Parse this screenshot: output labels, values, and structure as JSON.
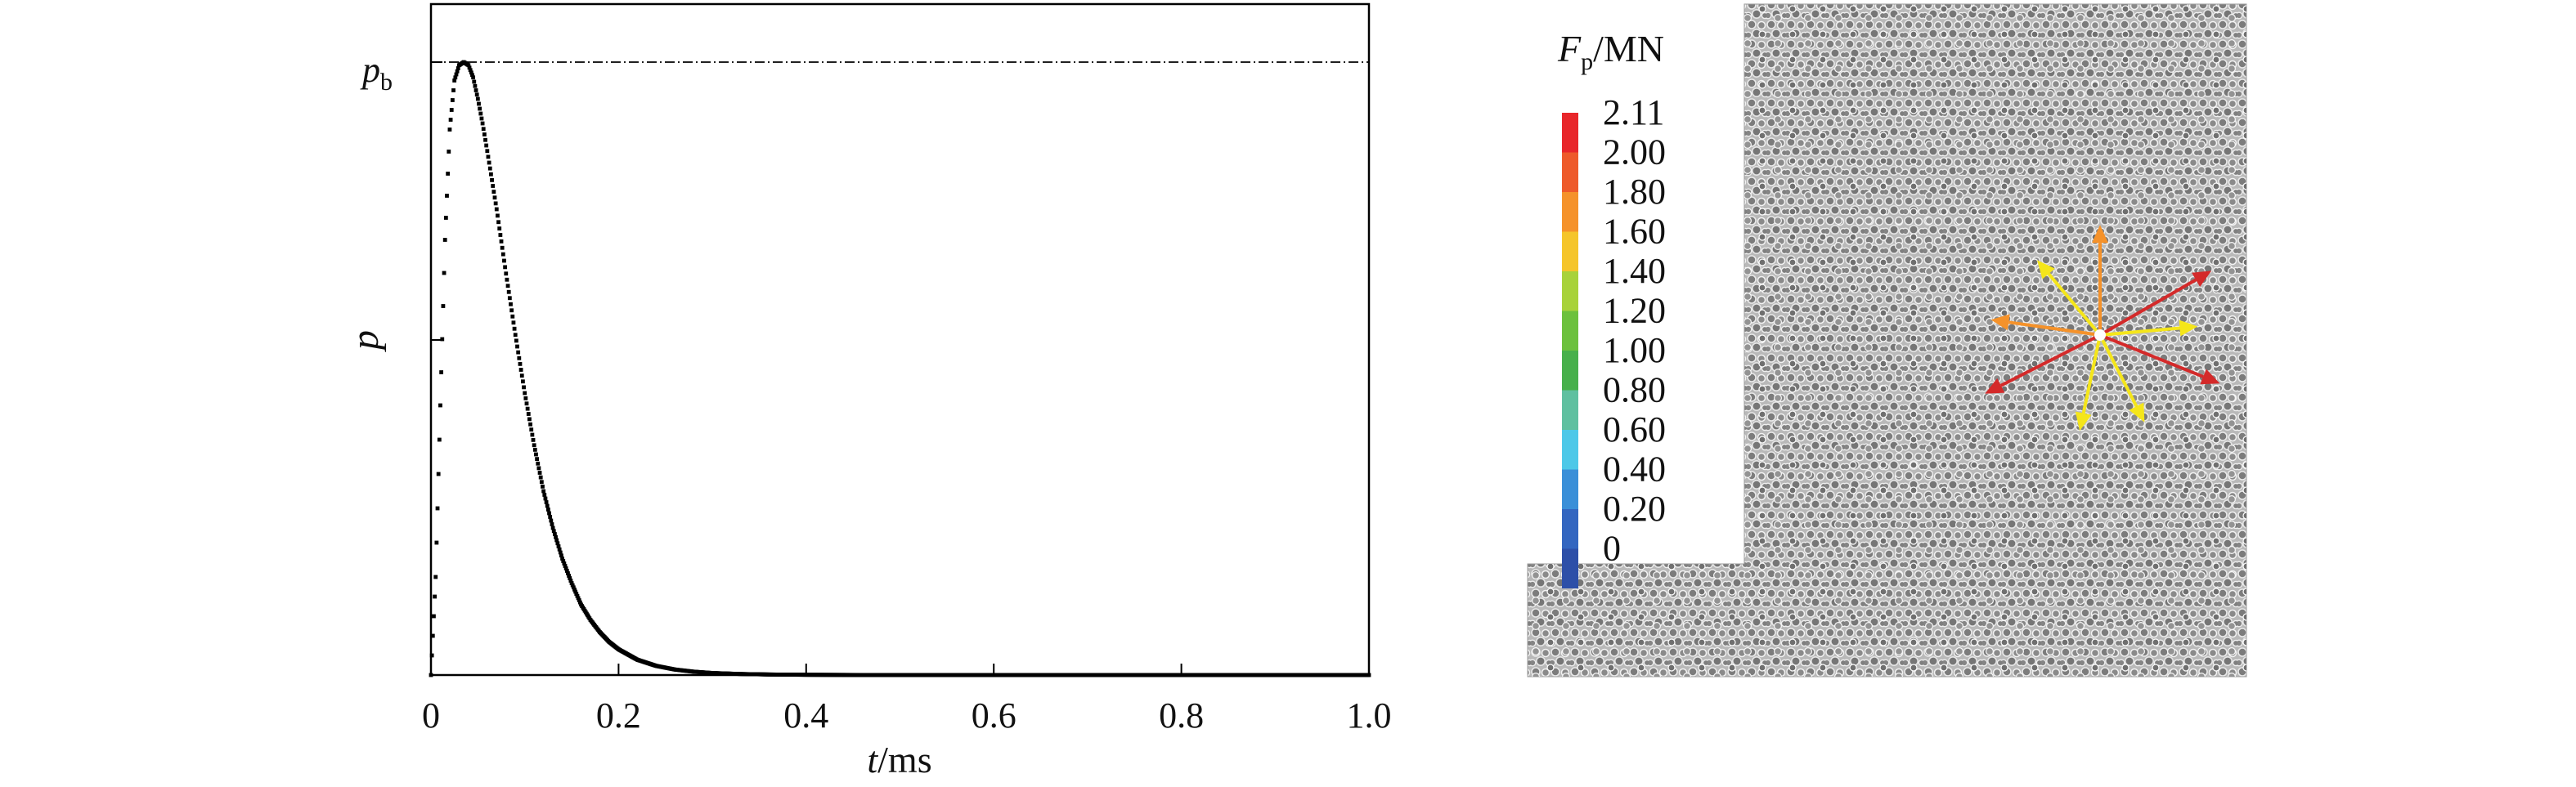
{
  "chart_data": [
    {
      "type": "line",
      "title": "",
      "xlabel": "t/ms",
      "xlabel_parts": {
        "var": "t",
        "unit": "/ms"
      },
      "ylabel": "p",
      "xlim": [
        0,
        1.0
      ],
      "xticks": [
        0,
        0.2,
        0.4,
        0.6,
        0.8,
        1.0
      ],
      "xtick_labels": [
        "0",
        "0.2",
        "0.4",
        "0.6",
        "0.8",
        "1.0"
      ],
      "peak_label": {
        "var": "p",
        "sub": "b"
      },
      "reference_line": "peak pressure p_b (dash-dot horizontal line)",
      "y_scale": "normalized (no numeric ticks)",
      "series": [
        {
          "marker": "square dots",
          "x": [
            0,
            0.005,
            0.01,
            0.015,
            0.02,
            0.025,
            0.03,
            0.035,
            0.04,
            0.045,
            0.05,
            0.055,
            0.06,
            0.07,
            0.08,
            0.09,
            0.1,
            0.11,
            0.12,
            0.13,
            0.14,
            0.15,
            0.16,
            0.17,
            0.18,
            0.19,
            0.2,
            0.22,
            0.24,
            0.26,
            0.28,
            0.3,
            0.33,
            0.36,
            0.4,
            0.45,
            0.5,
            0.6,
            0.7,
            0.8,
            0.9,
            1.0
          ],
          "y": [
            0,
            0.16,
            0.44,
            0.71,
            0.89,
            0.97,
            0.995,
            1.0,
            0.995,
            0.975,
            0.94,
            0.9,
            0.855,
            0.76,
            0.655,
            0.555,
            0.46,
            0.375,
            0.3,
            0.24,
            0.19,
            0.15,
            0.115,
            0.09,
            0.07,
            0.054,
            0.042,
            0.025,
            0.015,
            0.009,
            0.0055,
            0.0033,
            0.0017,
            0.0009,
            0.0004,
            0.00015,
            6e-05,
            1e-05,
            0,
            0,
            0,
            0
          ]
        }
      ]
    },
    {
      "type": "heatmap",
      "title": "",
      "colorbar_title": {
        "var": "F",
        "sub": "p",
        "unit": "/MN"
      },
      "colorbar": [
        {
          "label": "2.11",
          "color": "#e8262a"
        },
        {
          "label": "2.00",
          "color": "#ee5a2a"
        },
        {
          "label": "1.80",
          "color": "#f5922a"
        },
        {
          "label": "1.60",
          "color": "#f5c52a"
        },
        {
          "label": "1.40",
          "color": "#a8d23a"
        },
        {
          "label": "1.20",
          "color": "#6cc13d"
        },
        {
          "label": "1.00",
          "color": "#47b04b"
        },
        {
          "label": "0.80",
          "color": "#5fc0a0"
        },
        {
          "label": "0.60",
          "color": "#4dc8e8"
        },
        {
          "label": "0.40",
          "color": "#3a8fd8"
        },
        {
          "label": "0.20",
          "color": "#3366c0"
        },
        {
          "label": "0",
          "color": "#2d4fa8"
        }
      ],
      "specimen": "granular particle assembly (L-shaped domain)",
      "force_vectors": [
        {
          "angle_deg": 90,
          "magnitude": 1.8,
          "color": "#f5922a"
        },
        {
          "angle_deg": 30,
          "magnitude": 2.1,
          "color": "#d42a2a"
        },
        {
          "angle_deg": -22,
          "magnitude": 2.11,
          "color": "#d42a2a"
        },
        {
          "angle_deg": 5,
          "magnitude": 1.6,
          "color": "#f5e61a"
        },
        {
          "angle_deg": 130,
          "magnitude": 1.6,
          "color": "#f5e61a"
        },
        {
          "angle_deg": 172,
          "magnitude": 1.8,
          "color": "#f5922a"
        },
        {
          "angle_deg": 207,
          "magnitude": 2.11,
          "color": "#d42a2a"
        },
        {
          "angle_deg": 258,
          "magnitude": 1.6,
          "color": "#f5e61a"
        },
        {
          "angle_deg": 297,
          "magnitude": 1.6,
          "color": "#f5e61a"
        }
      ]
    }
  ]
}
